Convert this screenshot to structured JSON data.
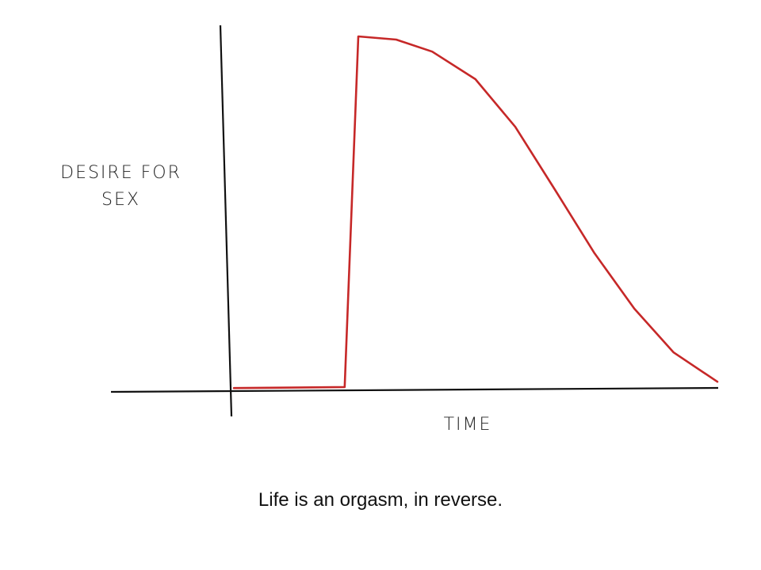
{
  "chart_data": {
    "type": "line",
    "title": "Life is an orgasm, in reverse.",
    "xlabel": "TIME",
    "ylabel": "DESIRE FOR SEX",
    "x": [
      0.5,
      23.3,
      26.1,
      33.9,
      41.3,
      50.2,
      58.4,
      66.6,
      74.7,
      82.9,
      91.0,
      100
    ],
    "series": [
      {
        "color": "#c62828",
        "values": [
          0.4,
          0.7,
          100,
          99.1,
          95.7,
          87.9,
          74.4,
          56.5,
          38.6,
          22.9,
          10.5,
          2.2
        ]
      }
    ],
    "xlim": [
      0,
      100
    ],
    "ylim": [
      0,
      100
    ]
  }
}
